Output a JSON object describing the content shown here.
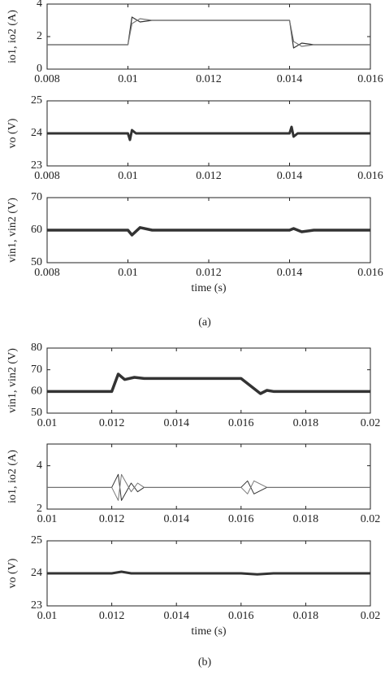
{
  "chart_data": [
    {
      "type": "line",
      "ylabel": "io1, io2 (A)",
      "xlim": [
        0.008,
        0.016
      ],
      "xticks": [
        0.008,
        0.01,
        0.012,
        0.014,
        0.016
      ],
      "ylim": [
        0,
        4
      ],
      "yticks": [
        0,
        2,
        4
      ],
      "x": [
        0.008,
        0.01,
        0.0101,
        0.0103,
        0.0106,
        0.014,
        0.0141,
        0.0143,
        0.0146,
        0.016
      ],
      "series": [
        {
          "color": "#333333",
          "values": [
            1.5,
            1.5,
            3.2,
            2.9,
            3,
            3,
            1.3,
            1.6,
            1.5,
            1.5
          ]
        },
        {
          "color": "#777777",
          "values": [
            1.5,
            1.5,
            2.8,
            3.1,
            3,
            3,
            1.7,
            1.4,
            1.5,
            1.5
          ]
        }
      ]
    },
    {
      "type": "line",
      "ylabel": "vo (V)",
      "xlim": [
        0.008,
        0.016
      ],
      "xticks": [
        0.008,
        0.01,
        0.012,
        0.014,
        0.016
      ],
      "ylim": [
        23,
        25
      ],
      "yticks": [
        23,
        24,
        25
      ],
      "x": [
        0.008,
        0.01,
        0.01005,
        0.0101,
        0.0102,
        0.014,
        0.01405,
        0.0141,
        0.0142,
        0.016
      ],
      "series": [
        {
          "color": "#333333",
          "values": [
            24,
            24,
            23.8,
            24.1,
            24,
            24,
            24.2,
            23.9,
            24,
            24
          ]
        }
      ]
    },
    {
      "type": "line",
      "ylabel": "vin1, vin2 (V)",
      "xlabel": "time (s)",
      "xlim": [
        0.008,
        0.016
      ],
      "xticks": [
        0.008,
        0.01,
        0.012,
        0.014,
        0.016
      ],
      "ylim": [
        50,
        70
      ],
      "yticks": [
        50,
        60,
        70
      ],
      "x": [
        0.008,
        0.01,
        0.0101,
        0.0103,
        0.0106,
        0.014,
        0.0141,
        0.0143,
        0.0146,
        0.016
      ],
      "series": [
        {
          "color": "#333333",
          "values": [
            60,
            60,
            58.5,
            60.8,
            60,
            60,
            60.5,
            59.5,
            60,
            60
          ]
        }
      ]
    },
    {
      "type": "line",
      "ylabel": "vin1, vin2 (V)",
      "xlim": [
        0.01,
        0.02
      ],
      "xticks": [
        0.01,
        0.012,
        0.014,
        0.016,
        0.018,
        0.02
      ],
      "ylim": [
        50,
        80
      ],
      "yticks": [
        50,
        60,
        70,
        80
      ],
      "x": [
        0.01,
        0.012,
        0.0122,
        0.0124,
        0.0127,
        0.013,
        0.016,
        0.0166,
        0.0168,
        0.017,
        0.02
      ],
      "series": [
        {
          "color": "#333333",
          "values": [
            60,
            60,
            68,
            65.5,
            66.5,
            66,
            66,
            59,
            60.5,
            60,
            60
          ]
        }
      ]
    },
    {
      "type": "line",
      "ylabel": "io1, io2 (A)",
      "xlim": [
        0.01,
        0.02
      ],
      "xticks": [
        0.01,
        0.012,
        0.014,
        0.016,
        0.018,
        0.02
      ],
      "ylim": [
        2,
        5
      ],
      "yticks": [
        2,
        4
      ],
      "x": [
        0.01,
        0.012,
        0.0122,
        0.0123,
        0.0126,
        0.0128,
        0.013,
        0.016,
        0.0162,
        0.0164,
        0.0168,
        0.02
      ],
      "series": [
        {
          "color": "#333333",
          "values": [
            3,
            3,
            3.6,
            2.4,
            3.2,
            2.8,
            3,
            3,
            3.3,
            2.7,
            3,
            3
          ]
        },
        {
          "color": "#777777",
          "values": [
            3,
            3,
            2.4,
            3.6,
            2.8,
            3.2,
            3,
            3,
            2.7,
            3.3,
            3,
            3
          ]
        }
      ]
    },
    {
      "type": "line",
      "ylabel": "vo (V)",
      "xlabel": "time (s)",
      "xlim": [
        0.01,
        0.02
      ],
      "xticks": [
        0.01,
        0.012,
        0.014,
        0.016,
        0.018,
        0.02
      ],
      "ylim": [
        23,
        25
      ],
      "yticks": [
        23,
        24,
        25
      ],
      "x": [
        0.01,
        0.012,
        0.0123,
        0.0126,
        0.016,
        0.0165,
        0.017,
        0.02
      ],
      "series": [
        {
          "color": "#333333",
          "values": [
            24,
            24,
            24.05,
            24,
            24,
            23.97,
            24,
            24
          ]
        }
      ]
    }
  ],
  "captions": [
    "(a)",
    "(b)"
  ]
}
